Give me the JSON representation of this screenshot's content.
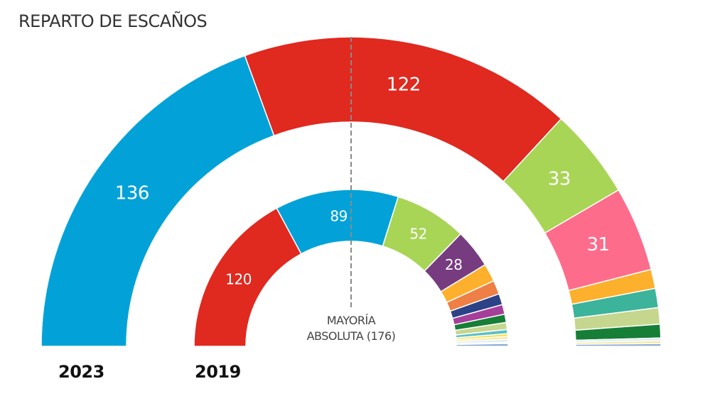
{
  "chart_data": [
    {
      "type": "pie",
      "subtype": "half-donut (hemicycle)",
      "title": "REPARTO DE ESCAÑOS",
      "label": "2023",
      "total_seats": 350,
      "order": "left-to-right",
      "segments": [
        {
          "value": 136,
          "color": "#02a2d8",
          "label": "136"
        },
        {
          "value": 122,
          "color": "#e0291f",
          "label": "122"
        },
        {
          "value": 33,
          "color": "#a8d556",
          "label": "33"
        },
        {
          "value": 31,
          "color": "#fe6c8b",
          "label": "31"
        },
        {
          "value": 7,
          "color": "#fdb02c",
          "label": ""
        },
        {
          "value": 7,
          "color": "#3cb39b",
          "label": ""
        },
        {
          "value": 6,
          "color": "#c5d68e",
          "label": ""
        },
        {
          "value": 5,
          "color": "#167e36",
          "label": ""
        },
        {
          "value": 1,
          "color": "#d9ebf7",
          "label": ""
        },
        {
          "value": 1,
          "color": "#f7e79a",
          "label": ""
        },
        {
          "value": 1,
          "color": "#8cacd5",
          "label": ""
        }
      ]
    },
    {
      "type": "pie",
      "subtype": "half-donut (hemicycle)",
      "label": "2019",
      "total_seats": 350,
      "order": "left-to-right",
      "segments": [
        {
          "value": 120,
          "color": "#e0291f",
          "label": "120"
        },
        {
          "value": 89,
          "color": "#02a2d8",
          "label": "89"
        },
        {
          "value": 52,
          "color": "#a8d556",
          "label": "52"
        },
        {
          "value": 28,
          "color": "#773b80",
          "label": "28"
        },
        {
          "value": 13,
          "color": "#fdb02c",
          "label": ""
        },
        {
          "value": 10,
          "color": "#ee7f45",
          "label": ""
        },
        {
          "value": 8,
          "color": "#2c4287",
          "label": ""
        },
        {
          "value": 7,
          "color": "#a53f9a",
          "label": ""
        },
        {
          "value": 6,
          "color": "#167e36",
          "label": ""
        },
        {
          "value": 5,
          "color": "#c5d68e",
          "label": ""
        },
        {
          "value": 3,
          "color": "#58c1c9",
          "label": ""
        },
        {
          "value": 2,
          "color": "#f6e250",
          "label": ""
        },
        {
          "value": 2,
          "color": "#f7e79a",
          "label": ""
        },
        {
          "value": 2,
          "color": "#d9ebf7",
          "label": ""
        },
        {
          "value": 1,
          "color": "#eef5fb",
          "label": ""
        },
        {
          "value": 2,
          "color": "#8cacd5",
          "label": ""
        }
      ]
    }
  ],
  "title": "REPARTO DE ESCAÑOS",
  "majority": {
    "line1": "MAYORÍA",
    "line2": "ABSOLUTA (176)",
    "threshold": 176
  },
  "years": {
    "outer": "2023",
    "inner": "2019"
  }
}
